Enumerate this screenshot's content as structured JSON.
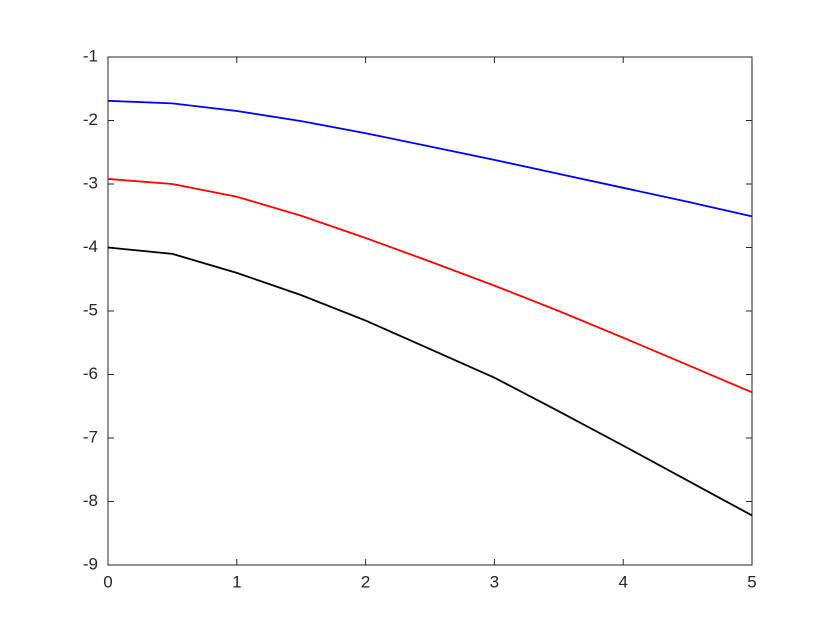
{
  "chart_data": {
    "type": "line",
    "x": [
      0,
      0.5,
      1,
      1.5,
      2,
      2.5,
      3,
      3.5,
      4,
      4.5,
      5
    ],
    "series": [
      {
        "color": "#0000ff",
        "values": [
          -1.69,
          -1.73,
          -1.85,
          -2.01,
          -2.2,
          -2.41,
          -2.62,
          -2.84,
          -3.06,
          -3.28,
          -3.51
        ]
      },
      {
        "color": "#ff0000",
        "values": [
          -2.92,
          -3.0,
          -3.2,
          -3.5,
          -3.85,
          -4.22,
          -4.6,
          -5.0,
          -5.42,
          -5.85,
          -6.28
        ]
      },
      {
        "color": "#000000",
        "values": [
          -4.0,
          -4.1,
          -4.4,
          -4.75,
          -5.15,
          -5.6,
          -6.05,
          -6.58,
          -7.12,
          -7.67,
          -8.22
        ]
      }
    ],
    "xlim": [
      0,
      5
    ],
    "xticks": [
      0,
      1,
      2,
      3,
      4,
      5
    ],
    "ylim": [
      -9,
      -1
    ],
    "yticks": [
      -9,
      -8,
      -7,
      -6,
      -5,
      -4,
      -3,
      -2,
      -1
    ]
  }
}
